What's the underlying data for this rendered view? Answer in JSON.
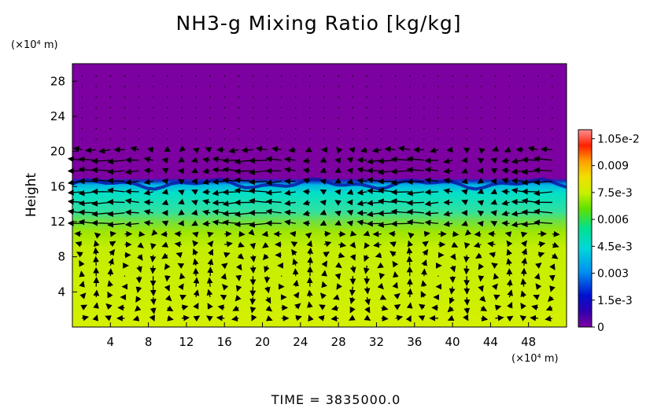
{
  "chart_data": {
    "type": "heatmap",
    "title": "NH3-g Mixing Ratio [kg/kg]",
    "xlabel": "",
    "ylabel": "Height",
    "x_unit": "(×10⁴ m)",
    "y_unit": "(×10⁴ m)",
    "xlim": [
      0,
      52
    ],
    "ylim": [
      0,
      30
    ],
    "x_ticks": [
      4,
      8,
      12,
      16,
      20,
      24,
      28,
      32,
      36,
      40,
      44,
      48
    ],
    "y_ticks": [
      4,
      8,
      12,
      16,
      20,
      24,
      28
    ],
    "colorbar": {
      "range": [
        0,
        0.011
      ],
      "ticks": [
        0,
        0.0015,
        0.003,
        0.0045,
        0.006,
        0.0075,
        0.009,
        0.0105
      ],
      "tick_labels": [
        "0",
        "1.5e-3",
        "0.003",
        "4.5e-3",
        "0.006",
        "7.5e-3",
        "0.009",
        "1.05e-2"
      ]
    },
    "field_profile": [
      {
        "height": 0,
        "value": 0.0083
      },
      {
        "height": 9,
        "value": 0.0083
      },
      {
        "height": 12,
        "value": 0.0068
      },
      {
        "height": 14,
        "value": 0.005
      },
      {
        "height": 15.5,
        "value": 0.004
      },
      {
        "height": 16.2,
        "value": 0.002
      },
      {
        "height": 16.6,
        "value": 0.0
      },
      {
        "height": 30,
        "value": 0.0
      }
    ],
    "annotation": "TIME = 3835000.0",
    "vectors": "quiver wind arrows overlaid"
  },
  "colors": {
    "purple": "#7d00a0",
    "cyan": "#00dcc8",
    "green": "#9ee600",
    "yellow": "#d2f000"
  }
}
